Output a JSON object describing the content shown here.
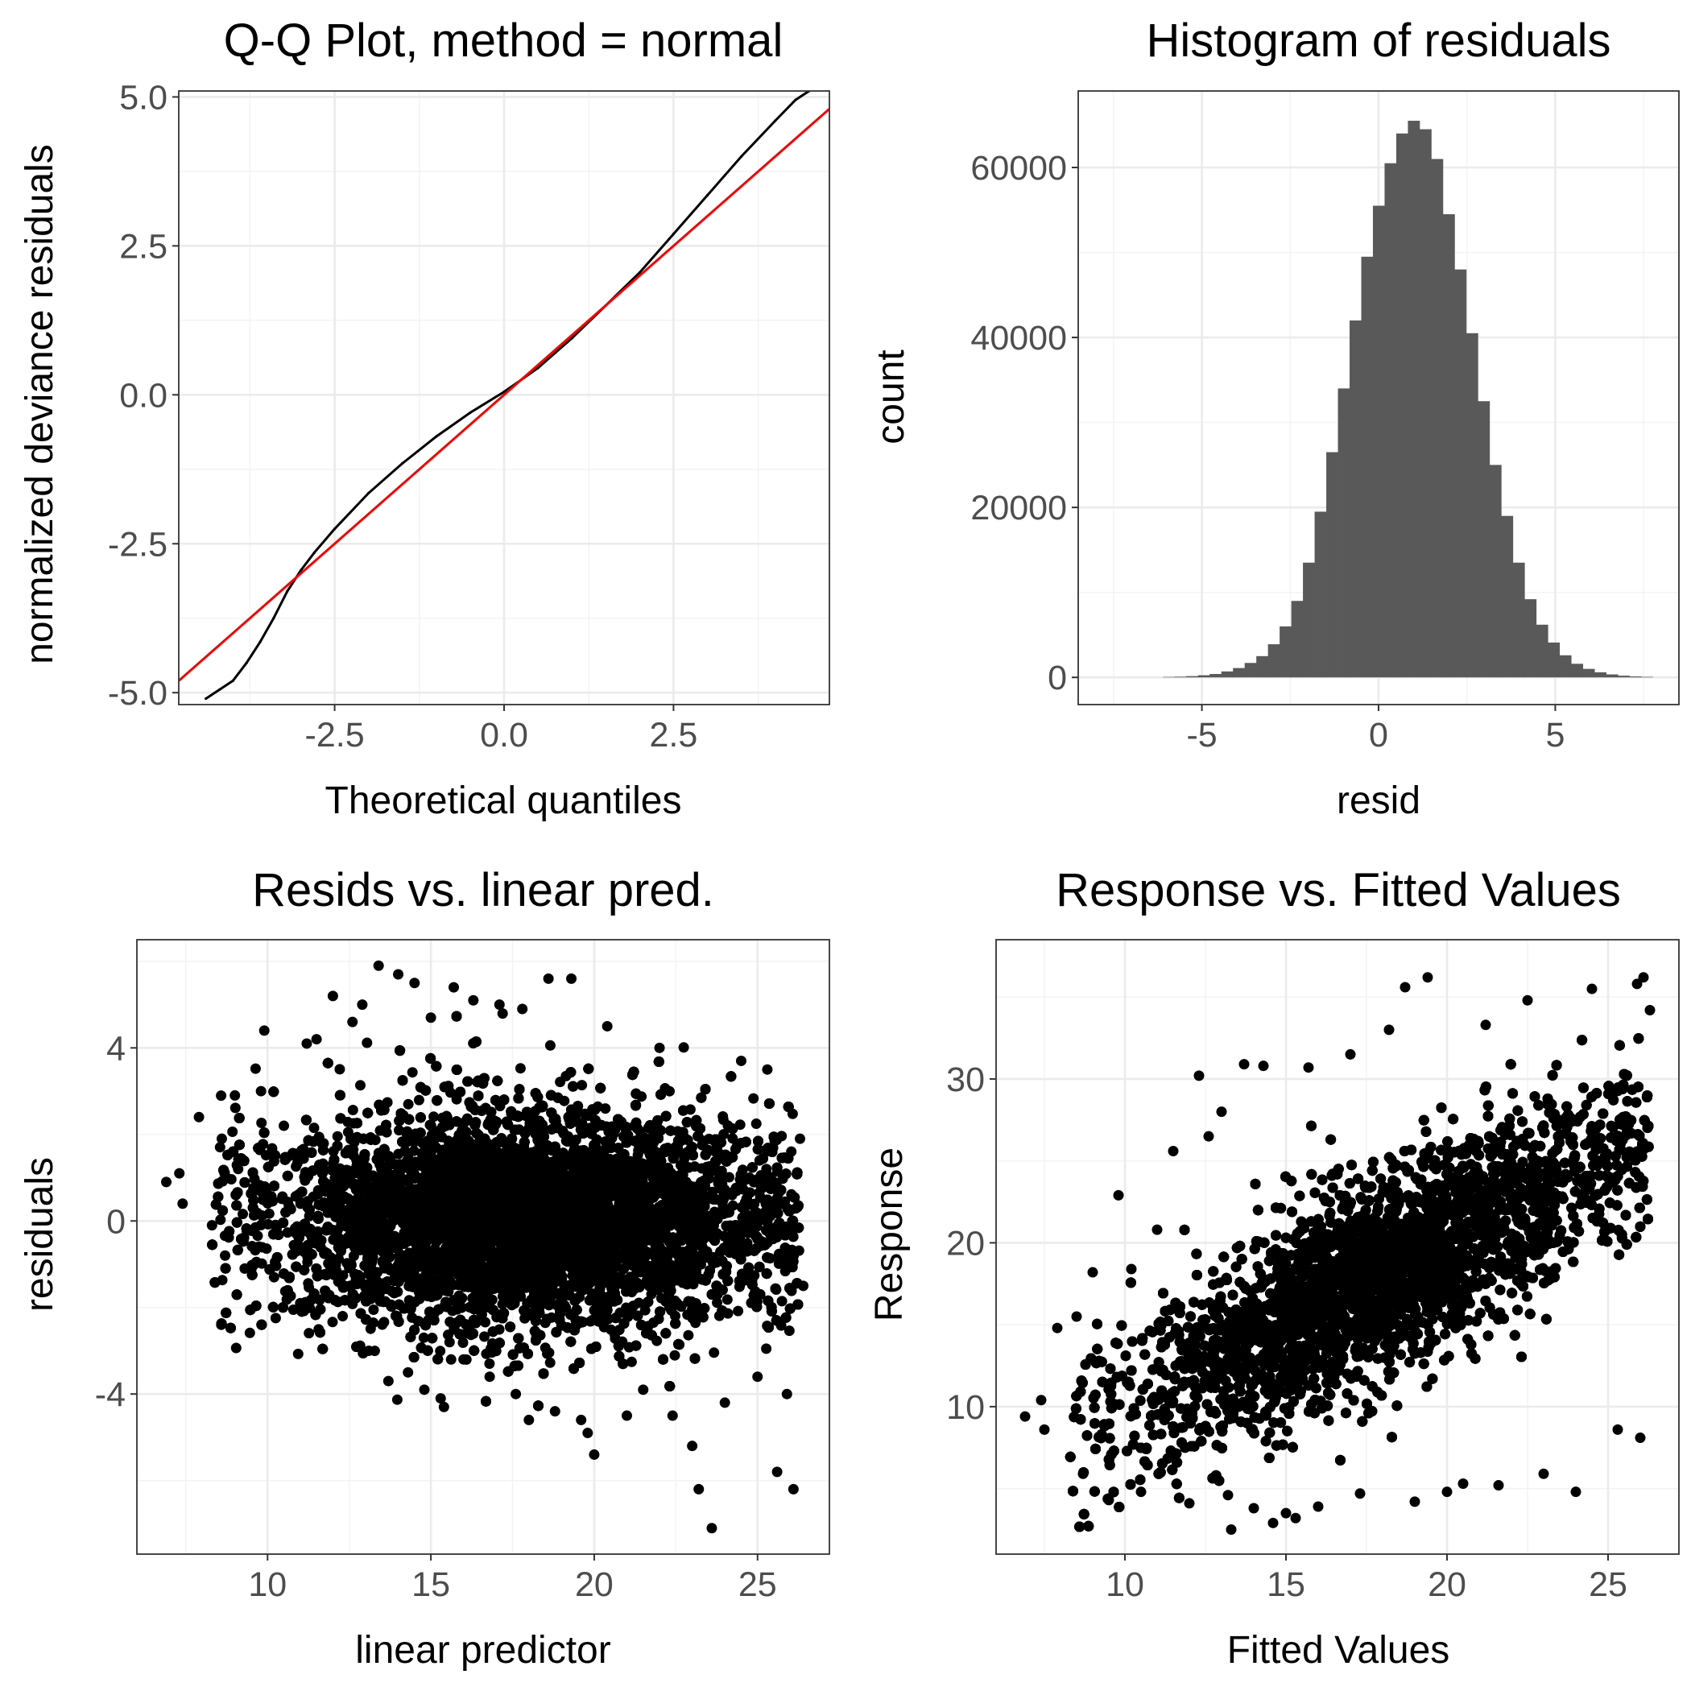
{
  "chart_data": [
    {
      "type": "line",
      "title": "Q-Q Plot, method = normal",
      "xlabel": "Theoretical quantiles",
      "ylabel": "normalized deviance residuals",
      "xlim": [
        -4.8,
        4.8
      ],
      "ylim": [
        -5.2,
        5.1
      ],
      "x_ticks": [
        -2.5,
        0.0,
        2.5
      ],
      "x_tick_labels": [
        "-2.5",
        "0.0",
        "2.5"
      ],
      "y_ticks": [
        -5.0,
        -2.5,
        0.0,
        2.5,
        5.0
      ],
      "y_tick_labels": [
        "-5.0",
        "-2.5",
        "0.0",
        "2.5",
        "5.0"
      ],
      "grid": true,
      "series": [
        {
          "kind": "sample-points",
          "color": "#000000",
          "x": [
            -4.4,
            -4.2,
            -4.0,
            -3.8,
            -3.6,
            -3.4,
            -3.2,
            -3.0,
            -2.8,
            -2.5,
            -2.0,
            -1.5,
            -1.0,
            -0.5,
            0.0,
            0.5,
            1.0,
            1.5,
            2.0,
            2.5,
            3.0,
            3.5,
            4.0,
            4.3,
            4.5
          ],
          "y": [
            -5.1,
            -4.95,
            -4.8,
            -4.5,
            -4.15,
            -3.75,
            -3.3,
            -2.95,
            -2.65,
            -2.25,
            -1.65,
            -1.15,
            -0.7,
            -0.3,
            0.05,
            0.45,
            0.95,
            1.5,
            2.05,
            2.7,
            3.35,
            4.0,
            4.6,
            4.95,
            5.1
          ]
        },
        {
          "kind": "reference-line",
          "color": "#ff0000",
          "x": [
            -4.8,
            4.8
          ],
          "y": [
            -4.8,
            4.8
          ]
        }
      ]
    },
    {
      "type": "bar",
      "title": "Histogram of residuals",
      "xlabel": "resid",
      "ylabel": "count",
      "xlim": [
        -8.5,
        8.5
      ],
      "ylim": [
        -3200,
        69000
      ],
      "x_ticks": [
        -5,
        0,
        5
      ],
      "x_tick_labels": [
        "-5",
        "0",
        "5"
      ],
      "y_ticks": [
        0,
        20000,
        40000,
        60000
      ],
      "y_tick_labels": [
        "0",
        "20000",
        "40000",
        "60000"
      ],
      "grid": true,
      "color": "#595959",
      "bin_width": 0.33,
      "bin_start": -6.1,
      "counts": [
        50,
        80,
        150,
        250,
        400,
        700,
        1100,
        1700,
        2500,
        3900,
        6000,
        9000,
        13500,
        19500,
        26500,
        34000,
        42000,
        49500,
        55500,
        60500,
        64000,
        65500,
        64500,
        61000,
        54500,
        48000,
        40500,
        32500,
        25000,
        19000,
        13500,
        9200,
        6200,
        4100,
        2600,
        1600,
        1000,
        600,
        350,
        200,
        110,
        60
      ]
    },
    {
      "type": "scatter",
      "title": "Resids vs. linear pred.",
      "xlabel": "linear predictor",
      "ylabel": "residuals",
      "xlim": [
        6.0,
        27.2
      ],
      "ylim": [
        -7.7,
        6.5
      ],
      "x_ticks": [
        10,
        15,
        20,
        25
      ],
      "x_tick_labels": [
        "10",
        "15",
        "20",
        "25"
      ],
      "y_ticks": [
        -4,
        0,
        4
      ],
      "y_tick_labels": [
        "-4",
        "0",
        "4"
      ],
      "grid": true,
      "color": "#000000",
      "points": [
        [
          6.9,
          0.9
        ],
        [
          7.3,
          1.1
        ],
        [
          7.4,
          0.4
        ],
        [
          7.9,
          2.4
        ],
        [
          8.3,
          -0.1
        ],
        [
          8.6,
          1.9
        ],
        [
          8.7,
          -0.8
        ],
        [
          9.0,
          2.9
        ],
        [
          9.1,
          1.2
        ],
        [
          9.3,
          -1.1
        ],
        [
          9.8,
          3.0
        ],
        [
          9.9,
          4.4
        ],
        [
          10.2,
          -1.3
        ],
        [
          10.5,
          2.2
        ],
        [
          11.0,
          -1.9
        ],
        [
          11.2,
          4.1
        ],
        [
          11.5,
          4.2
        ],
        [
          12.0,
          5.2
        ],
        [
          12.3,
          -2.2
        ],
        [
          12.6,
          4.6
        ],
        [
          12.9,
          5.0
        ],
        [
          13.1,
          -3.0
        ],
        [
          13.4,
          5.9
        ],
        [
          13.7,
          -3.7
        ],
        [
          14.0,
          5.7
        ],
        [
          14.3,
          -3.5
        ],
        [
          14.5,
          5.5
        ],
        [
          14.8,
          -3.9
        ],
        [
          15.0,
          4.7
        ],
        [
          15.3,
          -4.1
        ],
        [
          15.4,
          -4.3
        ],
        [
          15.7,
          5.4
        ],
        [
          16.0,
          -3.2
        ],
        [
          16.3,
          5.1
        ],
        [
          16.8,
          -3.6
        ],
        [
          17.1,
          5.0
        ],
        [
          17.6,
          -4.0
        ],
        [
          17.8,
          4.9
        ],
        [
          18.0,
          -4.6
        ],
        [
          18.6,
          5.6
        ],
        [
          18.8,
          -4.4
        ],
        [
          19.3,
          5.6
        ],
        [
          19.6,
          -4.6
        ],
        [
          19.8,
          -4.9
        ],
        [
          20.0,
          -5.4
        ],
        [
          20.4,
          4.5
        ],
        [
          21.0,
          -4.5
        ],
        [
          21.5,
          -3.9
        ],
        [
          22.0,
          4.0
        ],
        [
          22.4,
          -4.5
        ],
        [
          23.0,
          -5.2
        ],
        [
          23.2,
          -6.2
        ],
        [
          23.6,
          -7.1
        ],
        [
          24.0,
          -4.2
        ],
        [
          24.5,
          3.7
        ],
        [
          25.0,
          -3.6
        ],
        [
          25.3,
          3.5
        ],
        [
          25.6,
          -5.8
        ],
        [
          25.9,
          -4.0
        ],
        [
          26.1,
          -6.2
        ],
        [
          26.3,
          1.9
        ],
        [
          26.4,
          -1.5
        ]
      ],
      "cloud": {
        "x_center": 18.0,
        "x_sd": 3.9,
        "residual_sd": 1.1,
        "n": 22000
      }
    },
    {
      "type": "scatter",
      "title": "Response vs. Fitted Values",
      "xlabel": "Fitted Values",
      "ylabel": "Response",
      "xlim": [
        6.0,
        27.2
      ],
      "ylim": [
        1.0,
        38.5
      ],
      "x_ticks": [
        10,
        15,
        20,
        25
      ],
      "x_tick_labels": [
        "10",
        "15",
        "20",
        "25"
      ],
      "y_ticks": [
        10,
        20,
        30
      ],
      "y_tick_labels": [
        "10",
        "20",
        "30"
      ],
      "grid": true,
      "color": "#000000",
      "points": [
        [
          6.9,
          9.4
        ],
        [
          7.4,
          10.4
        ],
        [
          7.5,
          8.6
        ],
        [
          7.9,
          14.8
        ],
        [
          8.5,
          15.5
        ],
        [
          8.7,
          5.9
        ],
        [
          9.0,
          18.2
        ],
        [
          9.5,
          4.3
        ],
        [
          9.8,
          22.9
        ],
        [
          10.2,
          18.4
        ],
        [
          10.5,
          4.8
        ],
        [
          11.0,
          20.8
        ],
        [
          11.5,
          25.6
        ],
        [
          12.0,
          4.1
        ],
        [
          12.3,
          30.2
        ],
        [
          12.6,
          26.5
        ],
        [
          13.0,
          28.0
        ],
        [
          13.2,
          4.6
        ],
        [
          13.3,
          2.5
        ],
        [
          13.7,
          30.9
        ],
        [
          14.0,
          3.8
        ],
        [
          14.3,
          30.8
        ],
        [
          14.6,
          2.9
        ],
        [
          15.0,
          3.5
        ],
        [
          15.3,
          3.2
        ],
        [
          15.7,
          30.7
        ],
        [
          16.0,
          3.9
        ],
        [
          17.0,
          31.5
        ],
        [
          17.3,
          4.7
        ],
        [
          18.2,
          33.0
        ],
        [
          18.7,
          35.6
        ],
        [
          19.0,
          4.2
        ],
        [
          19.4,
          36.2
        ],
        [
          20.0,
          4.8
        ],
        [
          20.5,
          5.3
        ],
        [
          21.2,
          33.3
        ],
        [
          21.6,
          5.2
        ],
        [
          22.5,
          34.8
        ],
        [
          23.0,
          5.9
        ],
        [
          24.0,
          4.8
        ],
        [
          24.5,
          35.5
        ],
        [
          25.3,
          8.6
        ],
        [
          25.9,
          35.8
        ],
        [
          26.1,
          36.2
        ],
        [
          26.0,
          8.1
        ],
        [
          26.3,
          34.2
        ]
      ],
      "cloud": {
        "x_center": 18.0,
        "x_sd": 3.9,
        "slope": 1.0,
        "residual_sd": 3.0,
        "n": 22000
      }
    }
  ]
}
